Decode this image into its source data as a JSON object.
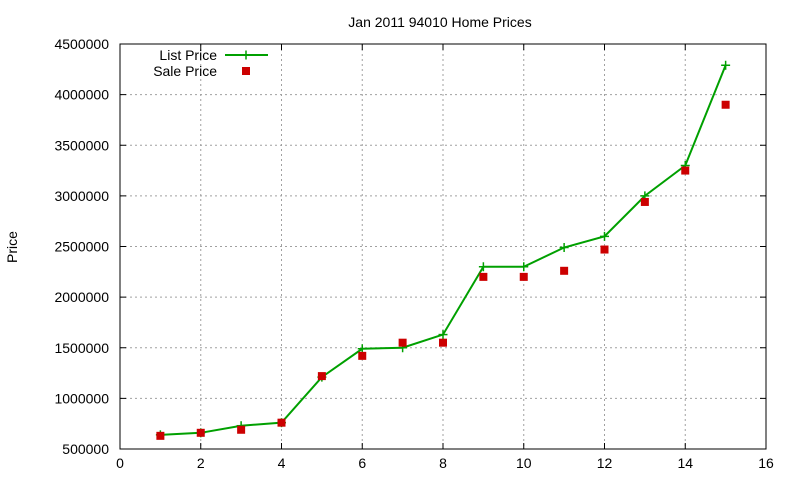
{
  "chart_data": {
    "type": "line",
    "title": "Jan 2011 94010 Home Prices",
    "xlabel": "",
    "ylabel": "Price",
    "xlim": [
      0,
      16
    ],
    "ylim": [
      500000,
      4500000
    ],
    "x_ticks": [
      0,
      2,
      4,
      6,
      8,
      10,
      12,
      14,
      16
    ],
    "y_ticks": [
      500000,
      1000000,
      1500000,
      2000000,
      2500000,
      3000000,
      3500000,
      4000000,
      4500000
    ],
    "grid": true,
    "legend_position": "top-left",
    "x": [
      1,
      2,
      3,
      4,
      5,
      6,
      7,
      8,
      9,
      10,
      11,
      12,
      13,
      14,
      15
    ],
    "series": [
      {
        "name": "List Price",
        "style": "line+plus",
        "color": "#00a000",
        "values": [
          640000,
          660000,
          730000,
          760000,
          1210000,
          1490000,
          1500000,
          1630000,
          2300000,
          2300000,
          2490000,
          2600000,
          3000000,
          3300000,
          4290000
        ]
      },
      {
        "name": "Sale Price",
        "style": "square",
        "color": "#cc0000",
        "values": [
          630000,
          660000,
          690000,
          760000,
          1220000,
          1420000,
          1550000,
          1550000,
          2200000,
          2200000,
          2260000,
          2470000,
          2940000,
          3250000,
          3900000
        ]
      }
    ]
  }
}
